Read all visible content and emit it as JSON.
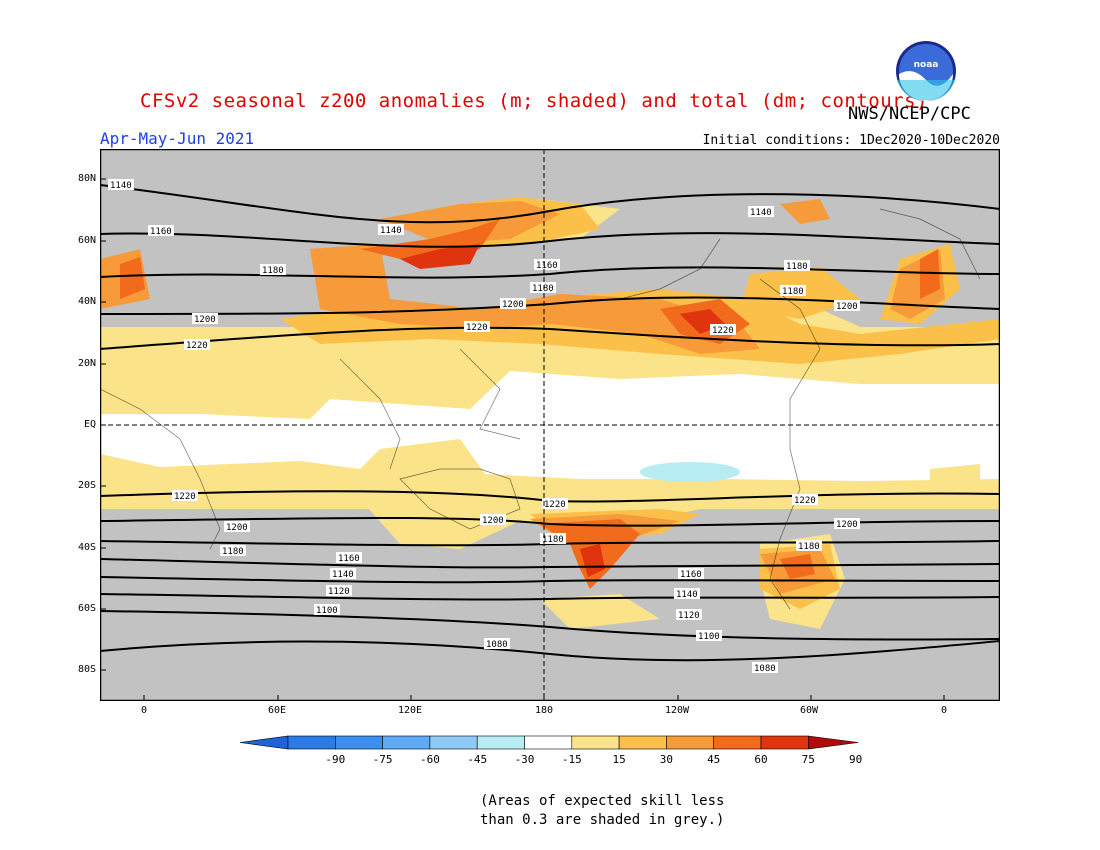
{
  "header": {
    "title": "CFSv2 seasonal z200 anomalies (m; shaded) and total (dm; contours)",
    "organization": "NWS/NCEP/CPC",
    "period": "Apr-May-Jun 2021",
    "initial_conditions": "Initial conditions: 1Dec2020-10Dec2020",
    "logo_text": "noaa"
  },
  "map": {
    "lat_labels": [
      "80N",
      "60N",
      "40N",
      "20N",
      "EQ",
      "20S",
      "40S",
      "60S",
      "80S"
    ],
    "lon_labels": [
      "0",
      "60E",
      "120E",
      "180",
      "120W",
      "60W",
      "0"
    ],
    "contour_labels": [
      "1140",
      "1160",
      "1180",
      "1200",
      "1220",
      "1080",
      "1100",
      "1120"
    ],
    "grey_meaning": "skill < 0.3"
  },
  "colorbar": {
    "ticks": [
      "-90",
      "-75",
      "-60",
      "-45",
      "-30",
      "-15",
      "15",
      "30",
      "45",
      "60",
      "75",
      "90"
    ],
    "colors": [
      "#1e64d8",
      "#2b7be6",
      "#3c8ff0",
      "#5fa9f5",
      "#8ecaf5",
      "#b6ecf2",
      "#ffffff",
      "#fbe38a",
      "#fbc04a",
      "#f79a3a",
      "#f26a1b",
      "#e0340e",
      "#b00c0c"
    ]
  },
  "footer": {
    "note_line1": "(Areas of expected skill less",
    "note_line2": "than 0.3 are shaded in grey.)"
  }
}
